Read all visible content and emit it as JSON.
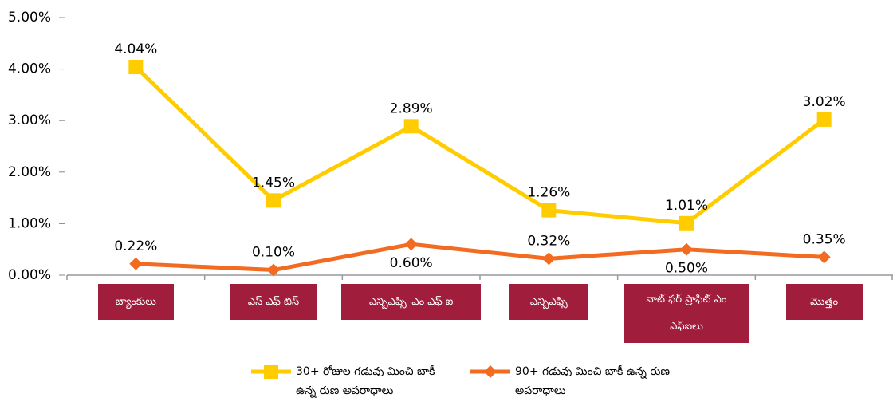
{
  "chart_data": {
    "type": "line",
    "categories": [
      "బ్యాంకులు",
      "ఎస్ ఎఫ్ బిస్",
      "ఎన్బిఎఫ్సి–ఎం ఎఫ్ ఐ",
      "ఎన్బిఎఫ్సి",
      "నాట్ ఫర్ ప్రాఫిట్ ఎం ఎఫ్ఐలు",
      "మొత్తం"
    ],
    "series": [
      {
        "name": "30+ రోజుల గడువు మించి బాకీ ఉన్న రుణ అపరాధాలు",
        "color": "#FFCC00",
        "marker": "square",
        "values": [
          4.04,
          1.45,
          2.89,
          1.26,
          1.01,
          3.02
        ],
        "value_labels": [
          "4.04%",
          "1.45%",
          "2.89%",
          "1.26%",
          "1.01%",
          "3.02%"
        ]
      },
      {
        "name": "90+ గడువు మించి బాకీ ఉన్న రుణ అపరాధాలు",
        "color": "#F26B21",
        "marker": "diamond",
        "values": [
          0.22,
          0.1,
          0.6,
          0.32,
          0.5,
          0.35
        ],
        "value_labels": [
          "0.22%",
          "0.10%",
          "0.60%",
          "0.32%",
          "0.50%",
          "0.35%"
        ]
      }
    ],
    "ylim": [
      0,
      5
    ],
    "yticks": [
      {
        "value": 0,
        "label": "0.00%"
      },
      {
        "value": 1,
        "label": "1.00%"
      },
      {
        "value": 2,
        "label": "2.00%"
      },
      {
        "value": 3,
        "label": "3.00%"
      },
      {
        "value": 4,
        "label": "4.00%"
      },
      {
        "value": 5,
        "label": "5.00%"
      }
    ],
    "category_box_color": "#A01D3C",
    "legend": "bottom"
  }
}
